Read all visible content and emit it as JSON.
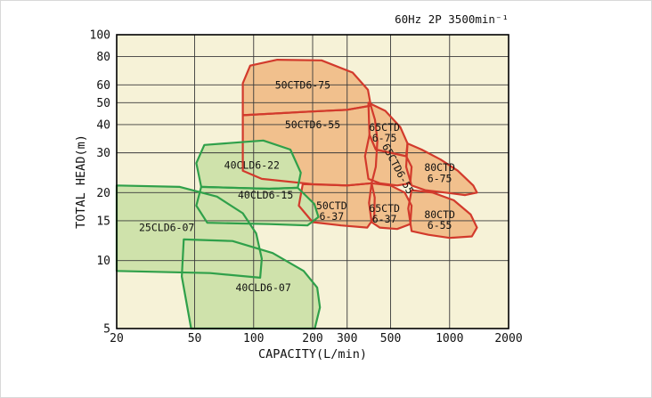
{
  "chart_data": {
    "type": "area",
    "title": "60Hz 2P 3500min⁻¹",
    "xlabel": "CAPACITY(L/min)",
    "ylabel": "TOTAL HEAD(m)",
    "x_scale": "log",
    "y_scale": "log",
    "xlim": [
      20,
      2000
    ],
    "ylim": [
      5,
      100
    ],
    "x_ticks": [
      20,
      50,
      100,
      200,
      300,
      500,
      1000,
      2000
    ],
    "y_ticks": [
      100,
      80,
      60,
      50,
      40,
      30,
      20,
      15,
      10,
      5
    ],
    "grid": true,
    "legend": "none",
    "colors": {
      "plot_bg": "#f6f2d7",
      "grid": "#3a3a3a",
      "frame": "#000000",
      "text": "#111111",
      "cld_fill": "#cfe2ab",
      "cld_stroke": "#2fa04a",
      "ctd_fill": "#f1c08d",
      "ctd_stroke": "#d23a2c"
    },
    "regions": [
      {
        "name": "50CTD6-75",
        "group": "ctd",
        "points": [
          [
            88,
            61
          ],
          [
            96,
            73
          ],
          [
            132,
            77.5
          ],
          [
            222,
            77
          ],
          [
            320,
            68
          ],
          [
            383,
            57
          ],
          [
            396,
            48.5
          ],
          [
            300,
            46.5
          ],
          [
            180,
            45.5
          ],
          [
            88,
            44
          ]
        ],
        "label": {
          "text": "50CTD6-75",
          "cap": 178,
          "head": 60,
          "rot": 0
        }
      },
      {
        "name": "50CTD6-55",
        "group": "ctd",
        "points": [
          [
            88,
            44
          ],
          [
            180,
            45.5
          ],
          [
            300,
            46.5
          ],
          [
            396,
            48.5
          ],
          [
            416,
            42
          ],
          [
            428,
            34
          ],
          [
            420,
            26
          ],
          [
            400,
            22
          ],
          [
            300,
            21.5
          ],
          [
            200,
            21.8
          ],
          [
            110,
            23
          ],
          [
            88,
            25
          ]
        ],
        "label": {
          "text": "50CTD6-55",
          "cap": 200,
          "head": 40,
          "rot": 0
        }
      },
      {
        "name": "65CTD6-75",
        "group": "ctd",
        "points": [
          [
            385,
            50
          ],
          [
            470,
            46
          ],
          [
            560,
            39
          ],
          [
            610,
            33
          ],
          [
            600,
            29
          ],
          [
            500,
            30
          ],
          [
            420,
            31
          ],
          [
            390,
            36
          ]
        ],
        "label": {
          "text": "65CTD\n6-75",
          "cap": 465,
          "head": 37,
          "rot": 0
        }
      },
      {
        "name": "65CTD6-55",
        "group": "ctd",
        "points": [
          [
            390,
            36
          ],
          [
            420,
            31
          ],
          [
            500,
            30
          ],
          [
            600,
            29
          ],
          [
            640,
            26
          ],
          [
            630,
            22
          ],
          [
            540,
            21.5
          ],
          [
            440,
            22
          ],
          [
            385,
            23
          ],
          [
            370,
            29
          ]
        ],
        "label": {
          "text": "65CTD6-55",
          "cap": 545,
          "head": 25.5,
          "rot": 62
        }
      },
      {
        "name": "80CTD6-75",
        "group": "ctd",
        "points": [
          [
            610,
            33
          ],
          [
            720,
            31
          ],
          [
            900,
            28
          ],
          [
            1100,
            25
          ],
          [
            1320,
            21.5
          ],
          [
            1380,
            20
          ],
          [
            1200,
            19.5
          ],
          [
            950,
            20
          ],
          [
            750,
            20.5
          ],
          [
            640,
            21.5
          ],
          [
            600,
            26
          ]
        ],
        "label": {
          "text": "80CTD\n6-75",
          "cap": 890,
          "head": 24.5,
          "rot": 0
        }
      },
      {
        "name": "50CTD6-37",
        "group": "ctd",
        "points": [
          [
            178,
            21.8
          ],
          [
            300,
            21.5
          ],
          [
            400,
            22
          ],
          [
            415,
            19
          ],
          [
            412,
            15.5
          ],
          [
            380,
            14
          ],
          [
            280,
            14.3
          ],
          [
            200,
            14.8
          ],
          [
            170,
            17.5
          ]
        ],
        "label": {
          "text": "50CTD\n6-37",
          "cap": 250,
          "head": 16.6,
          "rot": 0
        }
      },
      {
        "name": "65CTD6-37",
        "group": "ctd",
        "points": [
          [
            400,
            22
          ],
          [
            500,
            21.5
          ],
          [
            590,
            20
          ],
          [
            640,
            17.5
          ],
          [
            630,
            14.5
          ],
          [
            540,
            13.8
          ],
          [
            440,
            14
          ],
          [
            400,
            14.8
          ],
          [
            388,
            18
          ]
        ],
        "label": {
          "text": "65CTD\n6-37",
          "cap": 465,
          "head": 16.2,
          "rot": 0
        }
      },
      {
        "name": "80CTD6-55",
        "group": "ctd",
        "points": [
          [
            640,
            20.5
          ],
          [
            820,
            20
          ],
          [
            1050,
            18.5
          ],
          [
            1280,
            16
          ],
          [
            1380,
            14
          ],
          [
            1300,
            12.8
          ],
          [
            1000,
            12.6
          ],
          [
            780,
            13
          ],
          [
            640,
            13.5
          ],
          [
            615,
            17
          ]
        ],
        "label": {
          "text": "80CTD\n6-55",
          "cap": 890,
          "head": 15.2,
          "rot": 0
        }
      },
      {
        "name": "25CLD6-07",
        "group": "cld",
        "points": [
          [
            20,
            21.5
          ],
          [
            42,
            21.2
          ],
          [
            65,
            19.2
          ],
          [
            88,
            16.2
          ],
          [
            103,
            13.2
          ],
          [
            110,
            10.2
          ],
          [
            108,
            8.4
          ],
          [
            60,
            8.8
          ],
          [
            20,
            9
          ]
        ],
        "label": {
          "text": "25CLD6-07",
          "cap": 36,
          "head": 14,
          "rot": 0
        }
      },
      {
        "name": "40CLD6-22",
        "group": "cld",
        "points": [
          [
            56,
            32.5
          ],
          [
            112,
            34
          ],
          [
            154,
            31
          ],
          [
            174,
            24.5
          ],
          [
            168,
            21
          ],
          [
            120,
            20.8
          ],
          [
            54,
            21.2
          ],
          [
            51,
            27
          ]
        ],
        "label": {
          "text": "40CLD6-22",
          "cap": 98,
          "head": 26.5,
          "rot": 0
        }
      },
      {
        "name": "40CLD6-15",
        "group": "cld",
        "points": [
          [
            54,
            21.2
          ],
          [
            120,
            20.8
          ],
          [
            168,
            21
          ],
          [
            204,
            17.8
          ],
          [
            214,
            15.6
          ],
          [
            188,
            14.3
          ],
          [
            120,
            14.5
          ],
          [
            58,
            14.7
          ],
          [
            51,
            17.5
          ]
        ],
        "label": {
          "text": "40CLD6-15",
          "cap": 115,
          "head": 19.5,
          "rot": 0
        }
      },
      {
        "name": "40CLD6-07",
        "group": "cld",
        "points": [
          [
            44,
            12.4
          ],
          [
            78,
            12.2
          ],
          [
            125,
            10.8
          ],
          [
            180,
            9.0
          ],
          [
            211,
            7.6
          ],
          [
            218,
            6.2
          ],
          [
            205,
            5
          ],
          [
            48,
            5
          ],
          [
            43,
            8.5
          ]
        ],
        "label": {
          "text": "40CLD6-07",
          "cap": 112,
          "head": 7.6,
          "rot": 0
        }
      }
    ]
  }
}
